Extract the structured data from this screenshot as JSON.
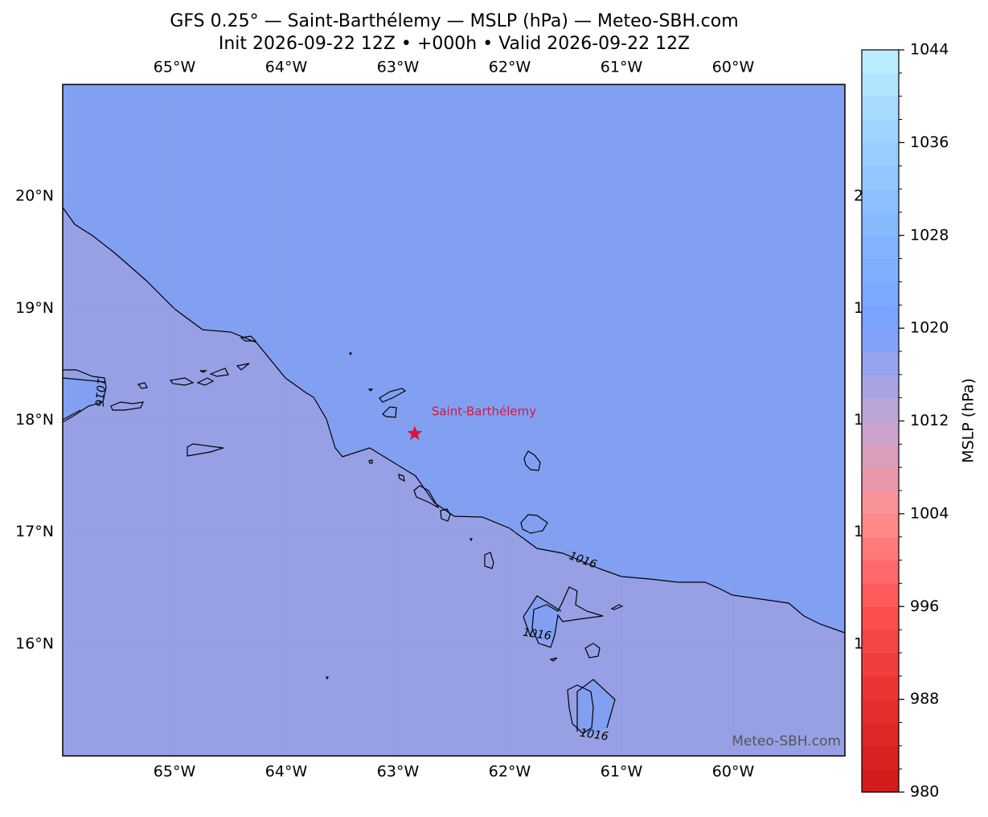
{
  "chart_data": {
    "type": "map",
    "title": "GFS 0.25° — Saint-Barthélemy — MSLP (hPa) — Meteo-SBH.com",
    "subtitle": "Init 2026-09-22 12Z • +000h • Valid 2026-09-22 12Z",
    "xlim": [
      -66,
      -59
    ],
    "ylim": [
      15,
      21
    ],
    "xticks": [
      {
        "value": -65,
        "label": "65°W"
      },
      {
        "value": -64,
        "label": "64°W"
      },
      {
        "value": -63,
        "label": "63°W"
      },
      {
        "value": -62,
        "label": "62°W"
      },
      {
        "value": -61,
        "label": "61°W"
      },
      {
        "value": -60,
        "label": "60°W"
      }
    ],
    "yticks": [
      {
        "value": 16,
        "label": "16°N"
      },
      {
        "value": 17,
        "label": "17°N"
      },
      {
        "value": 18,
        "label": "18°N"
      },
      {
        "value": 19,
        "label": "19°N"
      },
      {
        "value": 20,
        "label": "20°N"
      }
    ],
    "contour_level": 1016,
    "marker": {
      "name": "Saint-Barthélemy",
      "lon": -62.85,
      "lat": 17.88,
      "color": "#dc143c"
    },
    "watermark": "Meteo-SBH.com",
    "colorbar": {
      "label": "MSLP (hPa)",
      "lim": [
        980,
        1044
      ],
      "ticks": [
        980,
        988,
        996,
        1004,
        1012,
        1020,
        1028,
        1036,
        1044
      ],
      "step": 2,
      "colors": [
        "#d01818",
        "#e83030",
        "#ff5252",
        "#ff9090",
        "#c4a6d4",
        "#78a0ff",
        "#84b6ff",
        "#9ccfff",
        "#bdf0ff"
      ]
    }
  }
}
